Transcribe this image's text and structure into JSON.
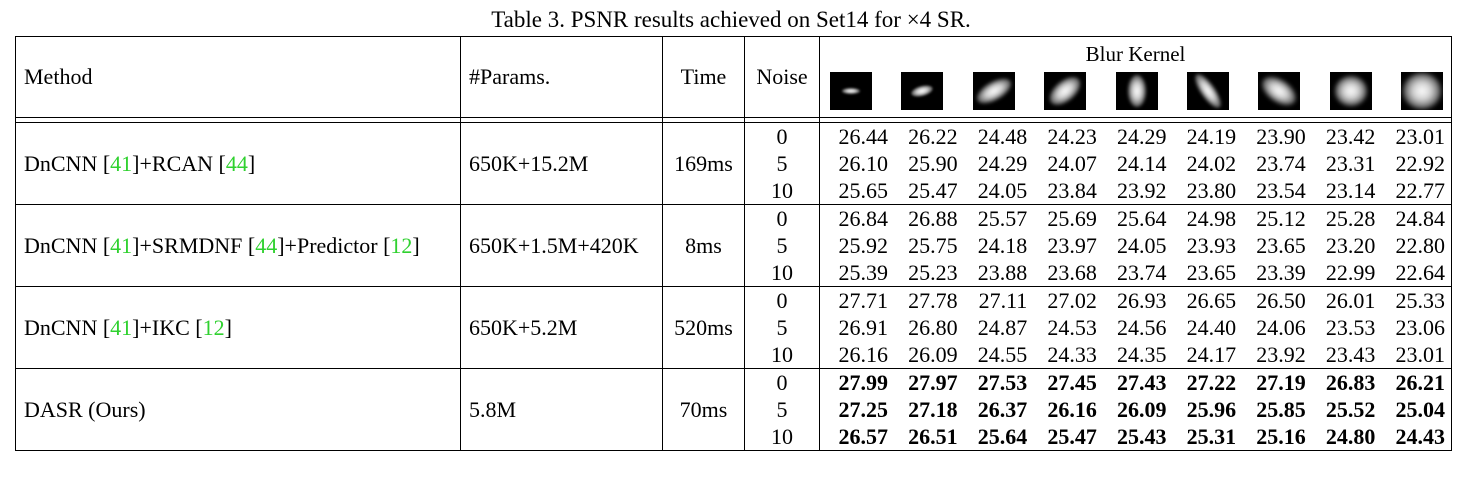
{
  "caption": "Table 3. PSNR results achieved on Set14 for ×4 SR.",
  "headers": {
    "method": "Method",
    "params": "#Params.",
    "time": "Time",
    "noise": "Noise",
    "blur_kernel": "Blur Kernel"
  },
  "kernels": [
    {
      "name": "isotropic-narrow",
      "w": 18,
      "h": 6,
      "rot": 0,
      "soft": 3
    },
    {
      "name": "anisotropic-small",
      "w": 22,
      "h": 10,
      "rot": 15,
      "soft": 4
    },
    {
      "name": "anisotropic-diag",
      "w": 38,
      "h": 18,
      "rot": 30,
      "soft": 7
    },
    {
      "name": "anisotropic-diag2",
      "w": 36,
      "h": 20,
      "rot": 40,
      "soft": 7
    },
    {
      "name": "anisotropic-vertical",
      "w": 18,
      "h": 32,
      "rot": 0,
      "soft": 6
    },
    {
      "name": "anisotropic-steep",
      "w": 14,
      "h": 40,
      "rot": 35,
      "soft": 6
    },
    {
      "name": "anisotropic-wide",
      "w": 38,
      "h": 22,
      "rot": -35,
      "soft": 8
    },
    {
      "name": "isotropic-large",
      "w": 32,
      "h": 30,
      "rot": 0,
      "soft": 9
    },
    {
      "name": "isotropic-xlarge",
      "w": 38,
      "h": 36,
      "rot": 0,
      "soft": 10
    }
  ],
  "rows": [
    {
      "method_parts": [
        {
          "text": "DnCNN [",
          "ref": false
        },
        {
          "text": "41",
          "ref": true
        },
        {
          "text": "]+RCAN [",
          "ref": false
        },
        {
          "text": "44",
          "ref": true
        },
        {
          "text": "]",
          "ref": false
        }
      ],
      "params": "650K+15.2M",
      "time": "169ms",
      "bold": false,
      "noise": [
        "0",
        "5",
        "10"
      ],
      "values": [
        [
          "26.44",
          "26.22",
          "24.48",
          "24.23",
          "24.29",
          "24.19",
          "23.90",
          "23.42",
          "23.01"
        ],
        [
          "26.10",
          "25.90",
          "24.29",
          "24.07",
          "24.14",
          "24.02",
          "23.74",
          "23.31",
          "22.92"
        ],
        [
          "25.65",
          "25.47",
          "24.05",
          "23.84",
          "23.92",
          "23.80",
          "23.54",
          "23.14",
          "22.77"
        ]
      ]
    },
    {
      "method_parts": [
        {
          "text": "DnCNN [",
          "ref": false
        },
        {
          "text": "41",
          "ref": true
        },
        {
          "text": "]+SRMDNF [",
          "ref": false
        },
        {
          "text": "44",
          "ref": true
        },
        {
          "text": "]+Predictor [",
          "ref": false
        },
        {
          "text": "12",
          "ref": true
        },
        {
          "text": "]",
          "ref": false
        }
      ],
      "params": "650K+1.5M+420K",
      "time": "8ms",
      "bold": false,
      "noise": [
        "0",
        "5",
        "10"
      ],
      "values": [
        [
          "26.84",
          "26.88",
          "25.57",
          "25.69",
          "25.64",
          "24.98",
          "25.12",
          "25.28",
          "24.84"
        ],
        [
          "25.92",
          "25.75",
          "24.18",
          "23.97",
          "24.05",
          "23.93",
          "23.65",
          "23.20",
          "22.80"
        ],
        [
          "25.39",
          "25.23",
          "23.88",
          "23.68",
          "23.74",
          "23.65",
          "23.39",
          "22.99",
          "22.64"
        ]
      ]
    },
    {
      "method_parts": [
        {
          "text": "DnCNN [",
          "ref": false
        },
        {
          "text": "41",
          "ref": true
        },
        {
          "text": "]+IKC [",
          "ref": false
        },
        {
          "text": "12",
          "ref": true
        },
        {
          "text": "]",
          "ref": false
        }
      ],
      "params": "650K+5.2M",
      "time": "520ms",
      "bold": false,
      "noise": [
        "0",
        "5",
        "10"
      ],
      "values": [
        [
          "27.71",
          "27.78",
          "27.11",
          "27.02",
          "26.93",
          "26.65",
          "26.50",
          "26.01",
          "25.33"
        ],
        [
          "26.91",
          "26.80",
          "24.87",
          "24.53",
          "24.56",
          "24.40",
          "24.06",
          "23.53",
          "23.06"
        ],
        [
          "26.16",
          "26.09",
          "24.55",
          "24.33",
          "24.35",
          "24.17",
          "23.92",
          "23.43",
          "23.01"
        ]
      ]
    },
    {
      "method_parts": [
        {
          "text": "DASR (Ours)",
          "ref": false
        }
      ],
      "params": "5.8M",
      "time": "70ms",
      "bold": true,
      "noise": [
        "0",
        "5",
        "10"
      ],
      "values": [
        [
          "27.99",
          "27.97",
          "27.53",
          "27.45",
          "27.43",
          "27.22",
          "27.19",
          "26.83",
          "26.21"
        ],
        [
          "27.25",
          "27.18",
          "26.37",
          "26.16",
          "26.09",
          "25.96",
          "25.85",
          "25.52",
          "25.04"
        ],
        [
          "26.57",
          "26.51",
          "25.64",
          "25.47",
          "25.43",
          "25.31",
          "25.16",
          "24.80",
          "24.43"
        ]
      ]
    }
  ]
}
